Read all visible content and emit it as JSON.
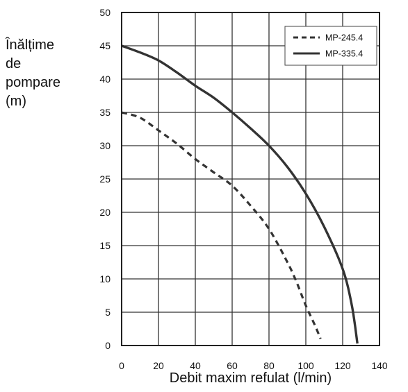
{
  "chart_data": {
    "type": "line",
    "ylabel_lines": [
      "Înălțime",
      "de",
      "pompare",
      "(m)"
    ],
    "xlabel": "Debit maxim refulat (l/min)",
    "xlim": [
      0,
      140
    ],
    "ylim": [
      0,
      50
    ],
    "x_ticks": [
      "0",
      "20",
      "40",
      "60",
      "80",
      "100",
      "120",
      "140"
    ],
    "y_ticks": [
      "0",
      "5",
      "10",
      "15",
      "20",
      "25",
      "30",
      "35",
      "40",
      "45",
      "50"
    ],
    "grid": true,
    "legend_position": "top-right",
    "series": [
      {
        "name": "MP-245.4",
        "style": "dashed",
        "color": "#333333",
        "x": [
          0,
          10,
          20,
          30,
          40,
          50,
          60,
          70,
          80,
          90,
          95,
          100,
          105,
          108
        ],
        "y": [
          35,
          34.2,
          32.3,
          30.3,
          28,
          26,
          24,
          21,
          17.5,
          12.5,
          9.5,
          6,
          3,
          1
        ]
      },
      {
        "name": "MP-335.4",
        "style": "solid",
        "color": "#333333",
        "x": [
          0,
          10,
          20,
          30,
          40,
          50,
          60,
          70,
          80,
          90,
          100,
          110,
          120,
          125,
          128
        ],
        "y": [
          45,
          44,
          42.8,
          41,
          39,
          37.2,
          35,
          32.6,
          30,
          26.8,
          22.8,
          17.8,
          11.5,
          6,
          0.3
        ]
      }
    ]
  }
}
